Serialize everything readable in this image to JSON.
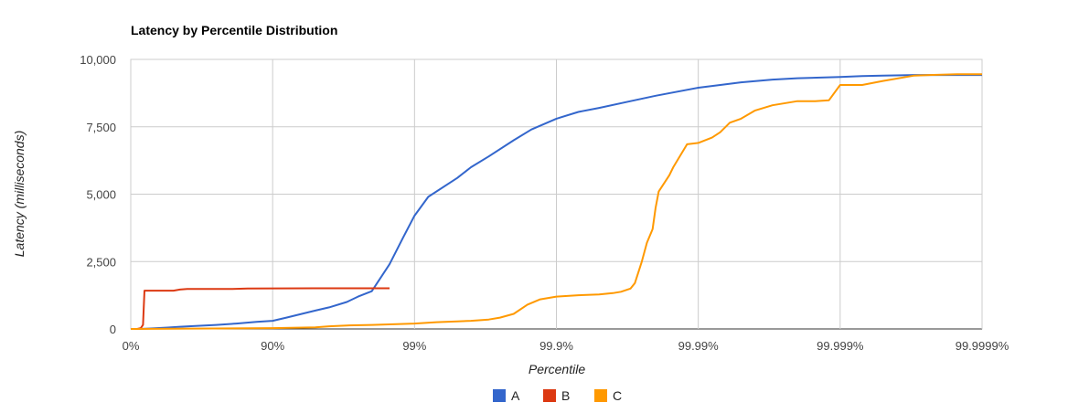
{
  "chart_data": {
    "type": "line",
    "title": "Latency by Percentile Distribution",
    "xlabel": "Percentile",
    "ylabel": "Latency (milliseconds)",
    "x_scale": "percentile (log of 1/(1-p))",
    "x_ticks": [
      "0%",
      "90%",
      "99%",
      "99.9%",
      "99.99%",
      "99.999%",
      "99.9999%"
    ],
    "y_ticks": [
      "0",
      "2,500",
      "5,000",
      "7,500",
      "10,000"
    ],
    "ylim": [
      0,
      10000
    ],
    "grid": true,
    "legend_position": "bottom",
    "series": [
      {
        "name": "A",
        "color": "#3366cc",
        "points": [
          [
            0,
            0
          ],
          [
            0.15,
            0
          ],
          [
            0.3,
            20
          ],
          [
            0.45,
            50
          ],
          [
            0.55,
            80
          ],
          [
            0.65,
            110
          ],
          [
            0.75,
            150
          ],
          [
            0.82,
            200
          ],
          [
            0.87,
            260
          ],
          [
            0.9,
            300
          ],
          [
            0.92,
            420
          ],
          [
            0.94,
            580
          ],
          [
            0.95,
            680
          ],
          [
            0.96,
            800
          ],
          [
            0.97,
            1000
          ],
          [
            0.975,
            1200
          ],
          [
            0.98,
            1400
          ],
          [
            0.985,
            2400
          ],
          [
            0.988,
            3400
          ],
          [
            0.99,
            4200
          ],
          [
            0.992,
            4900
          ],
          [
            0.995,
            5600
          ],
          [
            0.996,
            6000
          ],
          [
            0.997,
            6400
          ],
          [
            0.998,
            7000
          ],
          [
            0.9985,
            7400
          ],
          [
            0.999,
            7800
          ],
          [
            0.9993,
            8050
          ],
          [
            0.9995,
            8200
          ],
          [
            0.9997,
            8450
          ],
          [
            0.9998,
            8650
          ],
          [
            0.9999,
            8950
          ],
          [
            0.99993,
            9050
          ],
          [
            0.99995,
            9150
          ],
          [
            0.99997,
            9250
          ],
          [
            0.99998,
            9300
          ],
          [
            0.99999,
            9350
          ],
          [
            0.999993,
            9380
          ],
          [
            0.999995,
            9400
          ],
          [
            0.999997,
            9420
          ],
          [
            0.999998,
            9420
          ],
          [
            0.999999,
            9420
          ]
        ]
      },
      {
        "name": "B",
        "color": "#dc3912",
        "points": [
          [
            0,
            0
          ],
          [
            0.1,
            0
          ],
          [
            0.15,
            30
          ],
          [
            0.18,
            150
          ],
          [
            0.2,
            1420
          ],
          [
            0.4,
            1420
          ],
          [
            0.5,
            1420
          ],
          [
            0.55,
            1460
          ],
          [
            0.6,
            1480
          ],
          [
            0.8,
            1480
          ],
          [
            0.85,
            1500
          ],
          [
            0.95,
            1510
          ],
          [
            0.98,
            1510
          ],
          [
            0.985,
            1510
          ]
        ]
      },
      {
        "name": "C",
        "color": "#ff9900",
        "points": [
          [
            0,
            0
          ],
          [
            0.5,
            10
          ],
          [
            0.9,
            30
          ],
          [
            0.95,
            60
          ],
          [
            0.96,
            100
          ],
          [
            0.97,
            130
          ],
          [
            0.98,
            150
          ],
          [
            0.99,
            200
          ],
          [
            0.993,
            250
          ],
          [
            0.995,
            280
          ],
          [
            0.996,
            300
          ],
          [
            0.997,
            350
          ],
          [
            0.9975,
            420
          ],
          [
            0.998,
            560
          ],
          [
            0.9984,
            900
          ],
          [
            0.9987,
            1100
          ],
          [
            0.999,
            1200
          ],
          [
            0.9993,
            1250
          ],
          [
            0.9995,
            1280
          ],
          [
            0.9996,
            1330
          ],
          [
            0.99965,
            1380
          ],
          [
            0.9997,
            1500
          ],
          [
            0.99972,
            1700
          ],
          [
            0.99975,
            2500
          ],
          [
            0.99977,
            3200
          ],
          [
            0.99979,
            3700
          ],
          [
            0.9998,
            4500
          ],
          [
            0.99981,
            5100
          ],
          [
            0.99984,
            5700
          ],
          [
            0.99985,
            6000
          ],
          [
            0.99988,
            6850
          ],
          [
            0.9999,
            6900
          ],
          [
            0.99992,
            7100
          ],
          [
            0.99993,
            7300
          ],
          [
            0.99994,
            7650
          ],
          [
            0.99995,
            7800
          ],
          [
            0.99996,
            8100
          ],
          [
            0.99997,
            8300
          ],
          [
            0.99998,
            8450
          ],
          [
            0.999985,
            8450
          ],
          [
            0.999988,
            8480
          ],
          [
            0.99999,
            9050
          ],
          [
            0.999993,
            9050
          ],
          [
            0.999995,
            9200
          ],
          [
            0.999997,
            9400
          ],
          [
            0.9999985,
            9450
          ],
          [
            0.9999995,
            9450
          ]
        ]
      }
    ]
  }
}
